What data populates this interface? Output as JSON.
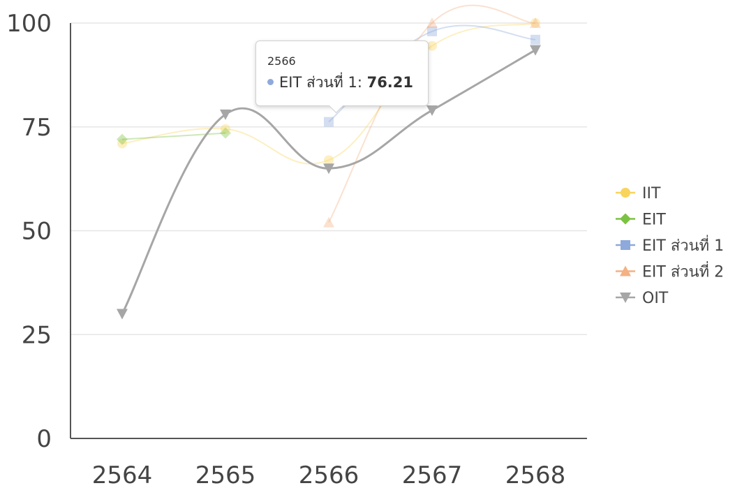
{
  "chart_data": {
    "type": "line",
    "categories": [
      "2564",
      "2565",
      "2566",
      "2567",
      "2568"
    ],
    "y_ticks": [
      "0",
      "25",
      "50",
      "75",
      "100"
    ],
    "ylim": [
      0,
      100
    ],
    "grid": true,
    "legend_position": "right",
    "series": [
      {
        "name": "IIT",
        "color": "#f9d45c",
        "marker": "circle",
        "faded": true,
        "values": [
          71,
          74.5,
          67,
          94.5,
          100
        ]
      },
      {
        "name": "EIT",
        "color": "#7cc242",
        "marker": "diamond",
        "faded": true,
        "values": [
          72,
          73.5,
          null,
          null,
          null
        ]
      },
      {
        "name": "EIT ส่วนที่ 1",
        "color": "#8ea9db",
        "marker": "square",
        "faded": true,
        "values": [
          null,
          null,
          76.21,
          98,
          96
        ]
      },
      {
        "name": "EIT ส่วนที่ 2",
        "color": "#f4b183",
        "marker": "triangle-up",
        "faded": true,
        "values": [
          null,
          null,
          52,
          100,
          100
        ]
      },
      {
        "name": "OIT",
        "color": "#a6a6a6",
        "marker": "triangle-down",
        "faded": false,
        "values": [
          30,
          78,
          65,
          79,
          93.5
        ]
      }
    ]
  },
  "tooltip": {
    "category": "2566",
    "series": "EIT ส่วนที่ 1",
    "separator": ": ",
    "value": "76.21",
    "dot_color": "#8ea9db"
  }
}
